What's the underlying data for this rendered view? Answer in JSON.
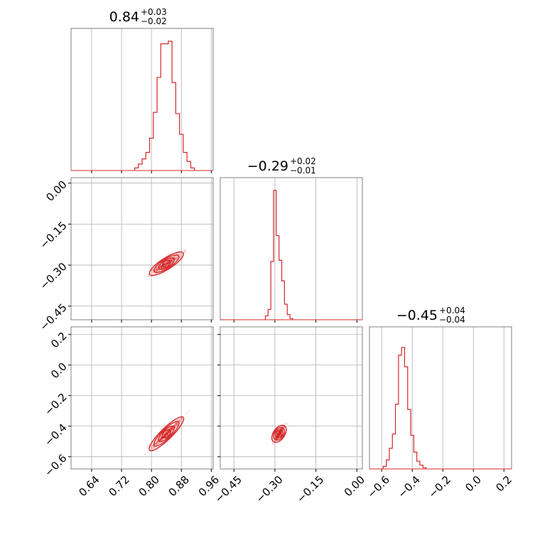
{
  "colors": {
    "series": "#d62728",
    "frame": "#808080",
    "grid": "#b0b0b0"
  },
  "chart_data": {
    "type": "corner",
    "grid": true,
    "parameters": [
      {
        "median": 0.84,
        "range": [
          0.585,
          0.965
        ],
        "ticks": [
          "0.64",
          "0.72",
          "0.80",
          "0.88",
          "0.96"
        ],
        "tick_values": [
          0.64,
          0.72,
          0.8,
          0.88,
          0.96
        ],
        "title": {
          "value": "0.84",
          "upper": "+0.03",
          "lower": "−0.02"
        }
      },
      {
        "median": -0.29,
        "range": [
          -0.5,
          0.02
        ],
        "ticks": [
          "−0.45",
          "−0.30",
          "−0.15",
          "0.00"
        ],
        "tick_values": [
          -0.45,
          -0.3,
          -0.15,
          0.0
        ],
        "title": {
          "value": "−0.29",
          "upper": "+0.02",
          "lower": "−0.01"
        }
      },
      {
        "median": -0.45,
        "range": [
          -0.68,
          0.25
        ],
        "ticks": [
          "−0.6",
          "−0.4",
          "−0.2",
          "0.0",
          "0.2"
        ],
        "tick_values": [
          -0.6,
          -0.4,
          -0.2,
          0.0,
          0.2
        ],
        "title": {
          "value": "−0.45",
          "upper": "+0.04",
          "lower": "−0.04"
        }
      }
    ],
    "hist_x": [
      {
        "x": [
          0.76,
          0.77,
          0.78,
          0.79,
          0.8,
          0.81,
          0.82,
          0.83,
          0.84,
          0.85,
          0.86,
          0.87,
          0.88,
          0.89,
          0.9,
          0.91
        ],
        "y": [
          2,
          5,
          9,
          14,
          25,
          45,
          72,
          98,
          98,
          100,
          68,
          44,
          28,
          14,
          7,
          2
        ]
      },
      {
        "x": [
          -0.33,
          -0.32,
          -0.31,
          -0.3,
          -0.29,
          -0.28,
          -0.27,
          -0.26,
          -0.25,
          -0.24
        ],
        "y": [
          3,
          8,
          45,
          100,
          65,
          46,
          30,
          12,
          4,
          1
        ]
      },
      {
        "x": [
          -0.58,
          -0.56,
          -0.54,
          -0.52,
          -0.5,
          -0.48,
          -0.46,
          -0.44,
          -0.42,
          -0.4,
          -0.38,
          -0.36,
          -0.34,
          -0.32
        ],
        "y": [
          2,
          7,
          16,
          27,
          50,
          88,
          94,
          79,
          46,
          26,
          13,
          6,
          3,
          1
        ]
      }
    ],
    "pairs": [
      {
        "row": 1,
        "col": 0,
        "center": [
          0.84,
          -0.295
        ],
        "slope": 0.87,
        "half_span": 0.045,
        "width": 0.018
      },
      {
        "row": 2,
        "col": 0,
        "center": [
          0.84,
          -0.45
        ],
        "slope": 2.4,
        "half_span": 0.045,
        "width": 0.025
      },
      {
        "row": 2,
        "col": 1,
        "center": [
          -0.285,
          -0.45
        ],
        "slope": 2.6,
        "half_span": 0.02,
        "width": 0.03
      }
    ]
  }
}
